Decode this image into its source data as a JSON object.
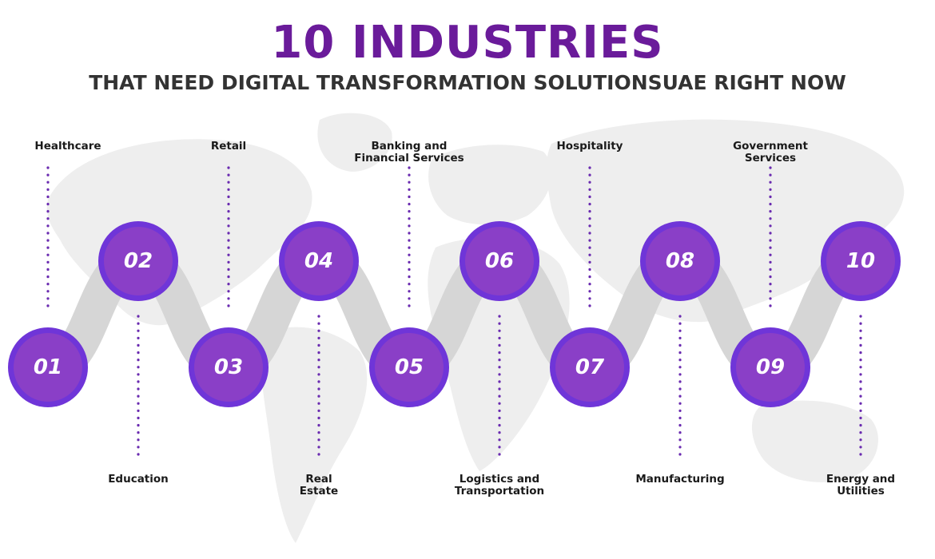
{
  "header": {
    "title": "10 INDUSTRIES",
    "subtitle": "THAT NEED DIGITAL TRANSFORMATION SOLUTIONSUAE RIGHT NOW"
  },
  "colors": {
    "title": "#6a1b9a",
    "subtitle": "#333333",
    "circle": "#8a3fc7",
    "circle_ring": "#6f35d8",
    "connector": "#d6d6d6",
    "dots": "#6a2bb0",
    "map": "#eeeeee"
  },
  "steps": [
    {
      "number": "01",
      "label": "Healthcare"
    },
    {
      "number": "02",
      "label": "Education"
    },
    {
      "number": "03",
      "label": "Retail"
    },
    {
      "number": "04",
      "label": "Real\nEstate"
    },
    {
      "number": "05",
      "label": "Banking and\nFinancial Services"
    },
    {
      "number": "06",
      "label": "Logistics and\nTransportation"
    },
    {
      "number": "07",
      "label": "Hospitality"
    },
    {
      "number": "08",
      "label": "Manufacturing"
    },
    {
      "number": "09",
      "label": "Government\nServices"
    },
    {
      "number": "10",
      "label": "Energy and\nUtilities"
    }
  ]
}
